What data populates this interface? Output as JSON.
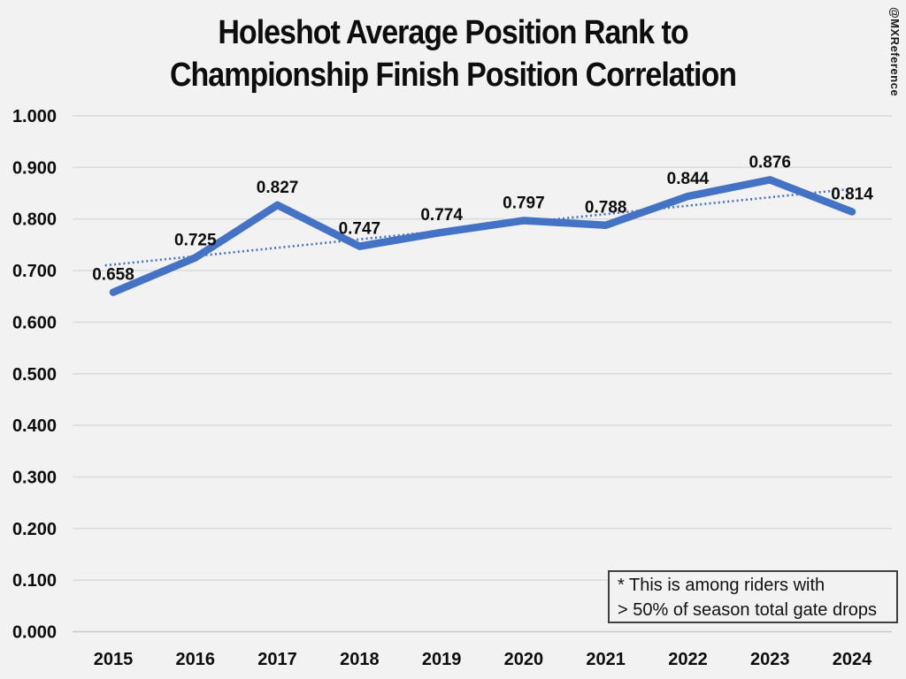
{
  "title": {
    "line1": "Holeshot Average Position Rank to",
    "line2": "Championship Finish Position Correlation"
  },
  "watermark": {
    "text": "@MXReference"
  },
  "note": {
    "line1": "* This is among riders with",
    "line2": "> 50% of season total gate drops"
  },
  "chart_data": {
    "type": "line",
    "title": "Holeshot Average Position Rank to Championship Finish Position Correlation",
    "categories": [
      "2015",
      "2016",
      "2017",
      "2018",
      "2019",
      "2020",
      "2021",
      "2022",
      "2023",
      "2024"
    ],
    "series": [
      {
        "values": [
          0.658,
          0.725,
          0.827,
          0.747,
          0.774,
          0.797,
          0.788,
          0.844,
          0.876,
          0.814
        ]
      }
    ],
    "data_labels": [
      "0.658",
      "0.725",
      "0.827",
      "0.747",
      "0.774",
      "0.797",
      "0.788",
      "0.844",
      "0.876",
      "0.814"
    ],
    "y_ticks": [
      "1.000",
      "0.900",
      "0.800",
      "0.700",
      "0.600",
      "0.500",
      "0.400",
      "0.300",
      "0.200",
      "0.100",
      "0.000"
    ],
    "ylim": [
      0,
      1
    ],
    "grid": true,
    "legend": "none",
    "trendline": {
      "type": "linear",
      "style": "dotted"
    },
    "annotation": "* This is among riders with > 50% of season total gate drops",
    "colors": {
      "line": "#4472C4",
      "trend": "#4472C4",
      "grid": "#d9d9d9",
      "axis": "#c8c8c8",
      "background": "#f2f2f2",
      "text": "#0d0d0d"
    }
  }
}
